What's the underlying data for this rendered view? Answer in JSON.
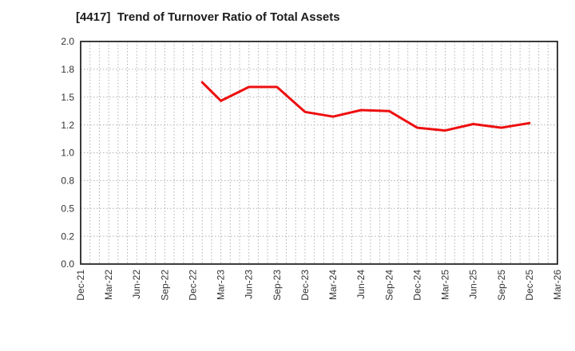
{
  "header": {
    "title": "[4417]  Trend of Turnover Ratio of Total Assets"
  },
  "chart_data": {
    "type": "line",
    "title": "[4417]  Trend of Turnover Ratio of Total Assets",
    "grid": true,
    "legend_position": "none",
    "x_axis": {
      "tick_labels": [
        "Dec-21",
        "Mar-22",
        "Jun-22",
        "Sep-22",
        "Dec-22",
        "Mar-23",
        "Jun-23",
        "Sep-23",
        "Dec-23",
        "Mar-24",
        "Jun-24",
        "Sep-24",
        "Dec-24",
        "Mar-25",
        "Jun-25",
        "Sep-25",
        "Dec-25",
        "Mar-26"
      ],
      "months_per_labeled_tick": 3,
      "total_months": 51,
      "minor_gridlines": "monthly"
    },
    "y_axis": {
      "tick_labels": [
        "0.0",
        "0.2",
        "0.5",
        "0.8",
        "1.0",
        "1.2",
        "1.5",
        "1.8",
        "2.0"
      ],
      "tick_values": [
        0.0,
        0.2,
        0.5,
        0.8,
        1.0,
        1.2,
        1.5,
        1.8,
        2.0
      ],
      "range": [
        0.0,
        2.0
      ],
      "ticks_equally_spaced": true
    },
    "series": [
      {
        "name": "Turnover Ratio of Total Assets",
        "color": "#ee0f0f",
        "points": [
          {
            "x": "Jan-23",
            "month_index": 13,
            "value": 1.66
          },
          {
            "x": "Mar-23",
            "month_index": 15,
            "value": 1.46
          },
          {
            "x": "Jun-23",
            "month_index": 18,
            "value": 1.61
          },
          {
            "x": "Sep-23",
            "month_index": 21,
            "value": 1.61
          },
          {
            "x": "Dec-23",
            "month_index": 24,
            "value": 1.34
          },
          {
            "x": "Mar-24",
            "month_index": 27,
            "value": 1.29
          },
          {
            "x": "Jun-24",
            "month_index": 30,
            "value": 1.36
          },
          {
            "x": "Sep-24",
            "month_index": 33,
            "value": 1.35
          },
          {
            "x": "Dec-24",
            "month_index": 36,
            "value": 1.18
          },
          {
            "x": "Mar-25",
            "month_index": 39,
            "value": 1.16
          },
          {
            "x": "Jun-25",
            "month_index": 42,
            "value": 1.21
          },
          {
            "x": "Sep-25",
            "month_index": 45,
            "value": 1.18
          },
          {
            "x": "Dec-25",
            "month_index": 48,
            "value": 1.22
          }
        ]
      }
    ],
    "colors": {
      "line": "#ee0f0f",
      "grid": "#b0b0b0",
      "axis_border": "#262626",
      "tick_text": "#333333",
      "title_text": "#1c1c1c",
      "background": "#ffffff"
    }
  }
}
